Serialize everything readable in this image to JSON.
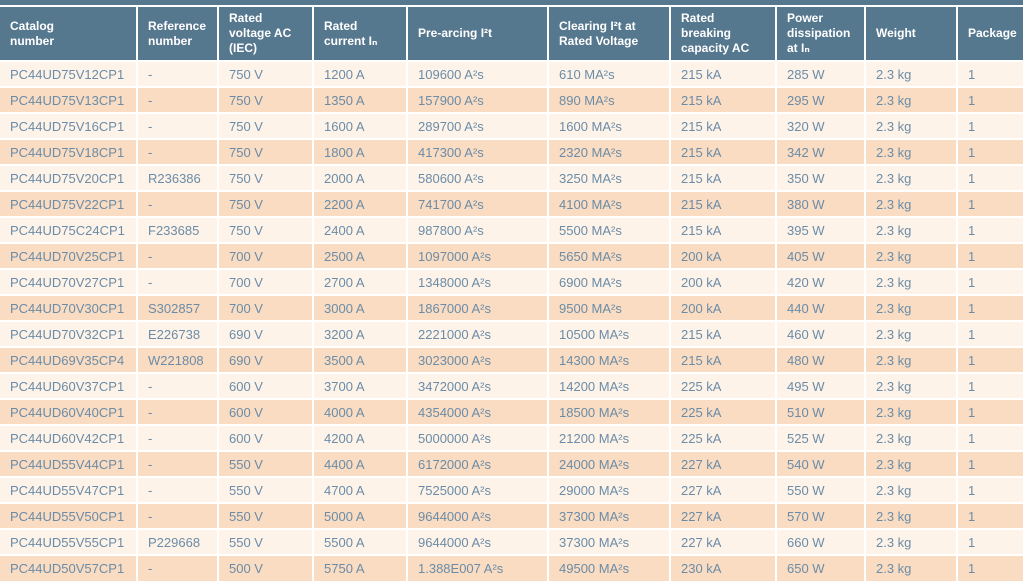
{
  "table": {
    "colors": {
      "header_bg": "#56788f",
      "header_text": "#ffffff",
      "row_odd_bg": "#fdf3e8",
      "row_even_bg": "#f9dcc1",
      "body_text": "#6b8ca8",
      "separator": "#ffffff"
    },
    "columns": [
      {
        "key": "catalog-number",
        "label": "Catalog\nnumber"
      },
      {
        "key": "reference-number",
        "label": "Reference\nnumber"
      },
      {
        "key": "rated-voltage-ac-iec",
        "label": "Rated\nvoltage AC\n(IEC)"
      },
      {
        "key": "rated-current-in",
        "label": "Rated\ncurrent Iₙ"
      },
      {
        "key": "pre-arcing-i2t",
        "label": "Pre-arcing I²t"
      },
      {
        "key": "clearing-i2t-rated-voltage",
        "label": "Clearing I²t at\nRated Voltage"
      },
      {
        "key": "rated-breaking-capacity-ac",
        "label": "Rated\nbreaking\ncapacity AC"
      },
      {
        "key": "power-dissipation-at-in",
        "label": "Power\ndissipation\nat Iₙ"
      },
      {
        "key": "weight",
        "label": "Weight"
      },
      {
        "key": "package",
        "label": "Package"
      }
    ],
    "rows": [
      [
        "PC44UD75V12CP1",
        "-",
        "750 V",
        "1200 A",
        "109600 A²s",
        "610 MA²s",
        "215 kA",
        "285 W",
        "2.3 kg",
        "1"
      ],
      [
        "PC44UD75V13CP1",
        "-",
        "750 V",
        "1350 A",
        "157900 A²s",
        "890 MA²s",
        "215 kA",
        "295 W",
        "2.3 kg",
        "1"
      ],
      [
        "PC44UD75V16CP1",
        "-",
        "750 V",
        "1600 A",
        "289700 A²s",
        "1600 MA²s",
        "215 kA",
        "320 W",
        "2.3 kg",
        "1"
      ],
      [
        "PC44UD75V18CP1",
        "-",
        "750 V",
        "1800 A",
        "417300 A²s",
        "2320 MA²s",
        "215 kA",
        "342 W",
        "2.3 kg",
        "1"
      ],
      [
        "PC44UD75V20CP1",
        "R236386",
        "750 V",
        "2000 A",
        "580600 A²s",
        "3250 MA²s",
        "215 kA",
        "350 W",
        "2.3 kg",
        "1"
      ],
      [
        "PC44UD75V22CP1",
        "-",
        "750 V",
        "2200 A",
        "741700 A²s",
        "4100 MA²s",
        "215 kA",
        "380 W",
        "2.3 kg",
        "1"
      ],
      [
        "PC44UD75C24CP1",
        "F233685",
        "750 V",
        "2400 A",
        "987800 A²s",
        "5500 MA²s",
        "215 kA",
        "395 W",
        "2.3 kg",
        "1"
      ],
      [
        "PC44UD70V25CP1",
        "-",
        "700 V",
        "2500 A",
        "1097000 A²s",
        "5650 MA²s",
        "200 kA",
        "405 W",
        "2.3 kg",
        "1"
      ],
      [
        "PC44UD70V27CP1",
        "-",
        "700 V",
        "2700 A",
        "1348000 A²s",
        "6900 MA²s",
        "200 kA",
        "420 W",
        "2.3 kg",
        "1"
      ],
      [
        "PC44UD70V30CP1",
        "S302857",
        "700 V",
        "3000 A",
        "1867000 A²s",
        "9500 MA²s",
        "200 kA",
        "440 W",
        "2.3 kg",
        "1"
      ],
      [
        "PC44UD70V32CP1",
        "E226738",
        "690 V",
        "3200 A",
        "2221000 A²s",
        "10500 MA²s",
        "215 kA",
        "460 W",
        "2.3 kg",
        "1"
      ],
      [
        "PC44UD69V35CP4",
        "W221808",
        "690 V",
        "3500 A",
        "3023000 A²s",
        "14300 MA²s",
        "215 kA",
        "480 W",
        "2.3 kg",
        "1"
      ],
      [
        "PC44UD60V37CP1",
        "-",
        "600 V",
        "3700 A",
        "3472000 A²s",
        "14200 MA²s",
        "225 kA",
        "495 W",
        "2.3 kg",
        "1"
      ],
      [
        "PC44UD60V40CP1",
        "-",
        "600 V",
        "4000 A",
        "4354000 A²s",
        "18500 MA²s",
        "225 kA",
        "510 W",
        "2.3 kg",
        "1"
      ],
      [
        "PC44UD60V42CP1",
        "-",
        "600 V",
        "4200 A",
        "5000000 A²s",
        "21200 MA²s",
        "225 kA",
        "525 W",
        "2.3 kg",
        "1"
      ],
      [
        "PC44UD55V44CP1",
        "-",
        "550 V",
        "4400 A",
        "6172000 A²s",
        "24000 MA²s",
        "227 kA",
        "540 W",
        "2.3 kg",
        "1"
      ],
      [
        "PC44UD55V47CP1",
        "-",
        "550 V",
        "4700 A",
        "7525000 A²s",
        "29000 MA²s",
        "227 kA",
        "550 W",
        "2.3 kg",
        "1"
      ],
      [
        "PC44UD55V50CP1",
        "-",
        "550 V",
        "5000 A",
        "9644000 A²s",
        "37300 MA²s",
        "227 kA",
        "570 W",
        "2.3 kg",
        "1"
      ],
      [
        "PC44UD55V55CP1",
        "P229668",
        "550 V",
        "5500 A",
        "9644000 A²s",
        "37300 MA²s",
        "227 kA",
        "660 W",
        "2.3 kg",
        "1"
      ],
      [
        "PC44UD50V57CP1",
        "-",
        "500 V",
        "5750 A",
        "1.388E007 A²s",
        "49500 MA²s",
        "230 kA",
        "650 W",
        "2.3 kg",
        "1"
      ]
    ]
  }
}
